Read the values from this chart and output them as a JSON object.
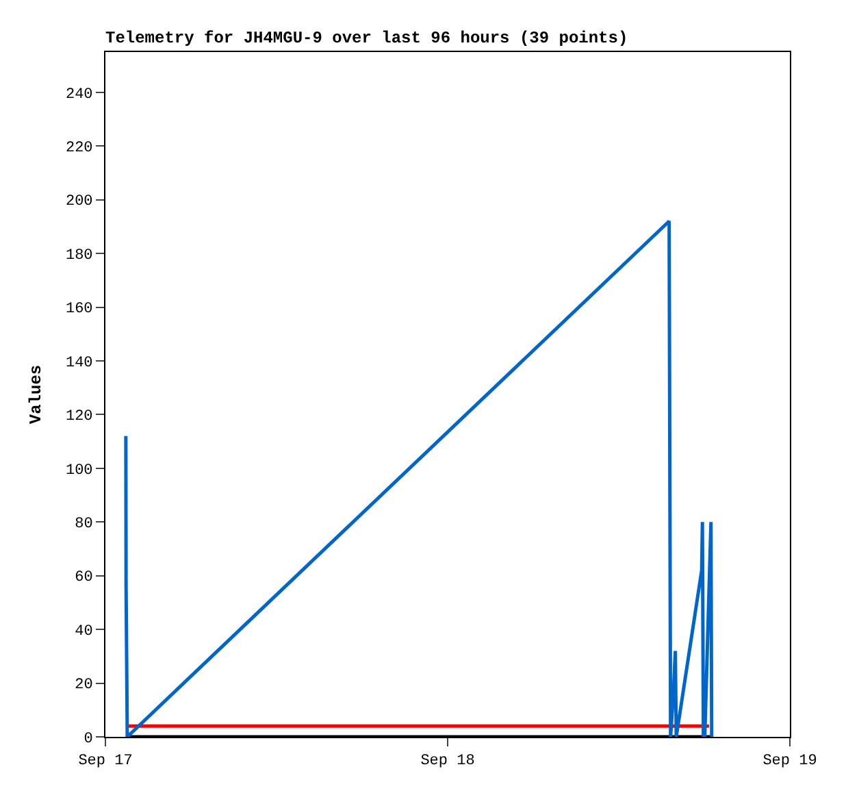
{
  "chart_data": {
    "type": "line",
    "title": "Telemetry for JH4MGU-9 over last 96 hours (39 points)",
    "ylabel": "Values",
    "xlim": [
      "--09-17T00:00",
      "--09-19T00:00"
    ],
    "xticks": [
      {
        "value": "--09-17T00:00",
        "label": "Sep 17"
      },
      {
        "value": "--09-18T00:00",
        "label": "Sep 18"
      },
      {
        "value": "--09-19T00:00",
        "label": "Sep 19"
      }
    ],
    "ylim": [
      0,
      255
    ],
    "yticks": [
      0,
      20,
      40,
      60,
      80,
      100,
      120,
      140,
      160,
      180,
      200,
      220,
      240
    ],
    "marker": "none",
    "line_style": "solid",
    "series": [
      {
        "color": "#000000",
        "x": [
          "--09-17T01:26",
          "--09-18T18:31"
        ],
        "values": [
          0,
          0
        ]
      },
      {
        "color": "#ff0000",
        "x": [
          "--09-17T01:26",
          "--09-18T18:20"
        ],
        "values": [
          4,
          4
        ]
      },
      {
        "color": "#0066cc",
        "x": [
          "--09-17T01:26",
          "--09-17T01:27",
          "--09-17T01:32",
          "--09-18T15:32",
          "--09-18T15:38",
          "--09-18T15:50",
          "--09-18T15:58",
          "--09-18T16:02",
          "--09-18T17:49",
          "--09-18T17:52",
          "--09-18T17:56",
          "--09-18T18:00",
          "--09-18T18:02",
          "--09-18T18:28",
          "--09-18T18:31"
        ],
        "values": [
          112,
          56,
          0,
          192,
          0,
          16,
          32,
          0,
          62,
          80,
          0,
          8,
          0,
          80,
          0
        ]
      }
    ]
  }
}
